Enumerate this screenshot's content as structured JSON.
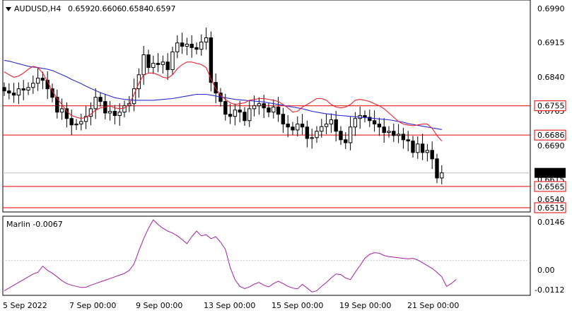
{
  "header": {
    "symbol": "AUDUSD,H4",
    "open": "0.6592",
    "high": "0.6606",
    "low": "0.6584",
    "close": "0.6597"
  },
  "indicator": {
    "label": "Marlin -0.0067"
  },
  "colors": {
    "candle_up": "#ffffff",
    "candle_down": "#000000",
    "ma_fast": "#e8202a",
    "ma_slow": "#2a2ad8",
    "levels": "#e00000",
    "marlin": "#a020a0",
    "current_price_tag": "#000000"
  },
  "chart_data": [
    {
      "type": "candlestick",
      "title": "AUDUSD,H4",
      "y_ticks": [
        "0.6990",
        "0.6915",
        "0.6840",
        "0.6765",
        "0.6690",
        "0.6615",
        "0.6540"
      ],
      "ylim": [
        0.6505,
        0.7004
      ],
      "x_tick_labels": [
        "5 Sep 2022",
        "7 Sep 00:00",
        "9 Sep 00:00",
        "13 Sep 00:00",
        "15 Sep 00:00",
        "19 Sep 00:00",
        "21 Sep 00:00"
      ],
      "current_price": "0.6597",
      "horizontal_levels": [
        {
          "label": "0.6755",
          "value": 0.6755
        },
        {
          "label": "0.6686",
          "value": 0.6686
        },
        {
          "label": "0.6565",
          "value": 0.6565
        },
        {
          "label": "0.6515",
          "value": 0.6515
        }
      ],
      "closes": [
        0.679,
        0.6785,
        0.678,
        0.6795,
        0.6792,
        0.6798,
        0.6808,
        0.682,
        0.6815,
        0.6795,
        0.6775,
        0.674,
        0.6748,
        0.6725,
        0.671,
        0.6712,
        0.6718,
        0.673,
        0.6748,
        0.6775,
        0.6765,
        0.6738,
        0.6742,
        0.6732,
        0.674,
        0.6755,
        0.676,
        0.6795,
        0.6828,
        0.6875,
        0.6845,
        0.6855,
        0.6852,
        0.6858,
        0.684,
        0.6882,
        0.6903,
        0.6895,
        0.69,
        0.6892,
        0.6888,
        0.6905,
        0.6915,
        0.681,
        0.6785,
        0.6765,
        0.6735,
        0.673,
        0.6745,
        0.674,
        0.672,
        0.6748,
        0.6755,
        0.676,
        0.675,
        0.674,
        0.6752,
        0.6735,
        0.6712,
        0.6705,
        0.6698,
        0.6712,
        0.6705,
        0.6678,
        0.668,
        0.6695,
        0.6706,
        0.6712,
        0.6722,
        0.6695,
        0.6675,
        0.6668,
        0.6705,
        0.6725,
        0.6732,
        0.6728,
        0.672,
        0.6712,
        0.6705,
        0.6692,
        0.6695,
        0.6685,
        0.6688,
        0.6675,
        0.6672,
        0.6645,
        0.6665,
        0.6645,
        0.665,
        0.663,
        0.6585,
        0.6597
      ],
      "ma_fast": {
        "name": "",
        "values": [
          0.6835,
          0.6828,
          0.6822,
          0.6825,
          0.6832,
          0.6841,
          0.6848,
          0.6845,
          0.6832,
          0.6812,
          0.679,
          0.6772,
          0.6758,
          0.6742,
          0.6732,
          0.6728,
          0.6725,
          0.6728,
          0.6735,
          0.6745,
          0.675,
          0.6752,
          0.6755,
          0.675,
          0.6748,
          0.675,
          0.6758,
          0.6782,
          0.6808,
          0.6828,
          0.6832,
          0.6832,
          0.6828,
          0.6822,
          0.682,
          0.6828,
          0.6842,
          0.6852,
          0.6858,
          0.6858,
          0.6855,
          0.6852,
          0.6845,
          0.6818,
          0.6795,
          0.678,
          0.677,
          0.6762,
          0.6758,
          0.676,
          0.6762,
          0.6768,
          0.677,
          0.6772,
          0.6772,
          0.677,
          0.6768,
          0.6765,
          0.6758,
          0.675,
          0.674,
          0.6742,
          0.6752,
          0.6758,
          0.6765,
          0.6772,
          0.6772,
          0.6768,
          0.6758,
          0.6752,
          0.675,
          0.6752,
          0.6758,
          0.6768,
          0.677,
          0.6768,
          0.6765,
          0.676,
          0.6755,
          0.6748,
          0.6738,
          0.6728,
          0.6718,
          0.6712,
          0.671,
          0.6708,
          0.671,
          0.6712,
          0.6712,
          0.6702,
          0.6685,
          0.6672
        ]
      },
      "ma_slow": {
        "name": "",
        "values": [
          0.6862,
          0.686,
          0.6857,
          0.6854,
          0.6851,
          0.6848,
          0.6846,
          0.6845,
          0.6843,
          0.6841,
          0.6838,
          0.6833,
          0.6828,
          0.6823,
          0.6817,
          0.6812,
          0.6807,
          0.6801,
          0.6796,
          0.6791,
          0.6786,
          0.6782,
          0.6778,
          0.6774,
          0.6772,
          0.677,
          0.6769,
          0.6768,
          0.6768,
          0.6768,
          0.6768,
          0.6768,
          0.6769,
          0.677,
          0.6771,
          0.6772,
          0.6774,
          0.6776,
          0.6778,
          0.678,
          0.6782,
          0.6782,
          0.6782,
          0.678,
          0.6778,
          0.6776,
          0.6774,
          0.6772,
          0.677,
          0.6769,
          0.6768,
          0.6767,
          0.6766,
          0.6765,
          0.6764,
          0.6762,
          0.676,
          0.6758,
          0.6756,
          0.6754,
          0.6752,
          0.675,
          0.6748,
          0.6745,
          0.6742,
          0.674,
          0.6738,
          0.6736,
          0.6735,
          0.6733,
          0.6732,
          0.6731,
          0.673,
          0.6729,
          0.6728,
          0.6727,
          0.6726,
          0.6725,
          0.6724,
          0.6723,
          0.6722,
          0.672,
          0.6718,
          0.6716,
          0.6713,
          0.6711,
          0.6709,
          0.6707,
          0.6705,
          0.6703,
          0.6701,
          0.6699
        ]
      }
    },
    {
      "type": "line",
      "title": "Marlin -0.0067",
      "y_ticks": [
        "0.0146",
        "0.00",
        "-0.0112"
      ],
      "ylim": [
        -0.0124,
        0.0158
      ],
      "series": [
        {
          "name": "",
          "values": [
            -0.0108,
            -0.0098,
            -0.0088,
            -0.0078,
            -0.0068,
            -0.0058,
            -0.0048,
            -0.0042,
            -0.002,
            -0.0035,
            -0.0045,
            -0.0058,
            -0.0072,
            -0.0082,
            -0.0088,
            -0.0092,
            -0.0096,
            -0.0095,
            -0.0088,
            -0.0082,
            -0.0076,
            -0.007,
            -0.0064,
            -0.0058,
            -0.0052,
            -0.0046,
            -0.0035,
            -0.0012,
            0.0035,
            0.0078,
            0.0115,
            0.0145,
            0.0128,
            0.0115,
            0.0105,
            0.0098,
            0.0088,
            0.0075,
            0.006,
            0.0085,
            0.0105,
            0.0088,
            0.0092,
            0.0078,
            0.0085,
            0.0065,
            0.004,
            -0.0025,
            -0.0068,
            -0.0092,
            -0.01,
            -0.0094,
            -0.0084,
            -0.0078,
            -0.0088,
            -0.0094,
            -0.0082,
            -0.0074,
            -0.0082,
            -0.0092,
            -0.0098,
            -0.0101,
            -0.0085,
            -0.0098,
            -0.0112,
            -0.0108,
            -0.0092,
            -0.0078,
            -0.0062,
            -0.0048,
            -0.005,
            -0.0062,
            -0.0068,
            -0.0042,
            -0.0018,
            0.0008,
            0.0022,
            0.0028,
            0.0026,
            0.0018,
            0.0014,
            0.0012,
            0.001,
            0.0008,
            0.0006,
            0.0008,
            0.0002,
            -0.0008,
            -0.0018,
            -0.0028,
            -0.0042,
            -0.0058,
            -0.0092,
            -0.0082,
            -0.0067
          ]
        }
      ]
    }
  ]
}
